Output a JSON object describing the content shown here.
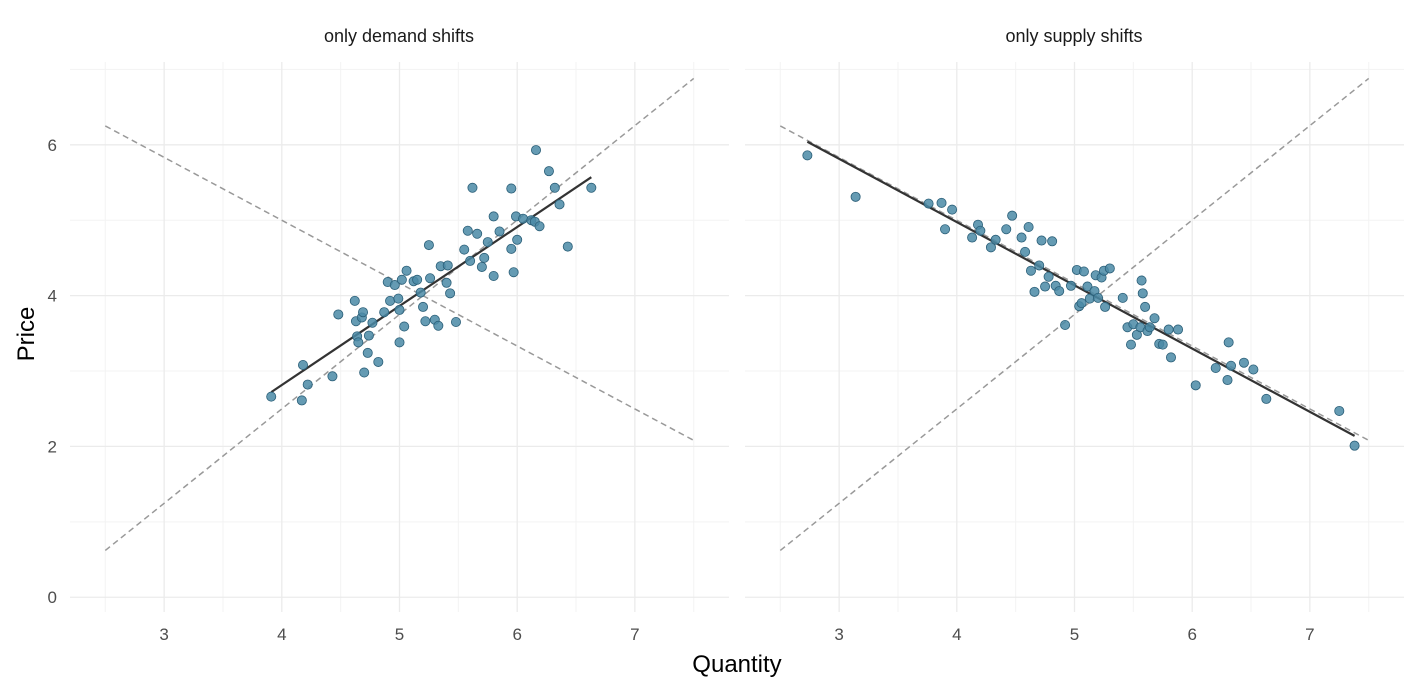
{
  "chart_data": {
    "type": "scatter",
    "xlabel": "Quantity",
    "ylabel": "Price",
    "xlim": [
      2.5,
      7.5
    ],
    "ylim": [
      0,
      7
    ],
    "x_ticks": [
      3,
      4,
      5,
      6,
      7
    ],
    "y_ticks": [
      0,
      2,
      4,
      6
    ],
    "grid": true,
    "colors": {
      "points": "#4a8aa6",
      "point_outline": "#2b5f78",
      "fit_line": "#333333",
      "reference_lines": "#999999",
      "grid": "#ebebeb"
    },
    "panels": [
      {
        "title": "only demand shifts",
        "reference_lines": [
          {
            "x": [
              2.5,
              7.5
            ],
            "y": [
              6.25,
              2.08
            ]
          },
          {
            "x": [
              2.5,
              7.5
            ],
            "y": [
              0.62,
              6.88
            ]
          }
        ],
        "fit_line": {
          "x": [
            3.91,
            6.63
          ],
          "y": [
            2.72,
            5.57
          ]
        },
        "points": {
          "x": [
            3.91,
            4.17,
            4.18,
            4.22,
            4.43,
            4.48,
            4.62,
            4.63,
            4.64,
            4.65,
            4.68,
            4.69,
            4.7,
            4.73,
            4.74,
            4.77,
            4.82,
            4.87,
            4.9,
            4.92,
            4.96,
            4.99,
            5.0,
            5.0,
            5.02,
            5.04,
            5.06,
            5.12,
            5.15,
            5.18,
            5.2,
            5.22,
            5.25,
            5.26,
            5.3,
            5.33,
            5.35,
            5.4,
            5.41,
            5.43,
            5.48,
            5.55,
            5.58,
            5.6,
            5.62,
            5.66,
            5.7,
            5.72,
            5.75,
            5.8,
            5.8,
            5.85,
            5.95,
            5.95,
            5.97,
            5.99,
            6.0,
            6.05,
            6.12,
            6.15,
            6.16,
            6.19,
            6.27,
            6.32,
            6.36,
            6.43,
            6.63
          ],
          "y": [
            2.66,
            2.61,
            3.08,
            2.82,
            2.93,
            3.75,
            3.93,
            3.66,
            3.46,
            3.38,
            3.71,
            3.78,
            2.98,
            3.24,
            3.47,
            3.64,
            3.12,
            3.78,
            4.18,
            3.93,
            4.14,
            3.96,
            3.81,
            3.38,
            4.21,
            3.59,
            4.33,
            4.19,
            4.21,
            4.04,
            3.85,
            3.66,
            4.67,
            4.23,
            3.68,
            3.6,
            4.39,
            4.17,
            4.4,
            4.03,
            3.65,
            4.61,
            4.86,
            4.46,
            5.43,
            4.82,
            4.38,
            4.5,
            4.71,
            4.26,
            5.05,
            4.85,
            5.42,
            4.62,
            4.31,
            5.05,
            4.74,
            5.02,
            5.0,
            4.98,
            5.93,
            4.92,
            5.65,
            5.43,
            5.21,
            4.65,
            5.43
          ]
        }
      },
      {
        "title": "only supply shifts",
        "reference_lines": [
          {
            "x": [
              2.5,
              7.5
            ],
            "y": [
              6.25,
              2.08
            ]
          },
          {
            "x": [
              2.5,
              7.5
            ],
            "y": [
              0.62,
              6.88
            ]
          }
        ],
        "fit_line": {
          "x": [
            2.73,
            7.38
          ],
          "y": [
            6.04,
            2.14
          ]
        },
        "points": {
          "x": [
            2.73,
            3.14,
            3.76,
            3.87,
            3.9,
            3.96,
            4.13,
            4.18,
            4.2,
            4.29,
            4.33,
            4.42,
            4.47,
            4.55,
            4.58,
            4.61,
            4.63,
            4.66,
            4.7,
            4.72,
            4.75,
            4.78,
            4.81,
            4.84,
            4.87,
            4.92,
            4.97,
            5.02,
            5.04,
            5.06,
            5.08,
            5.11,
            5.13,
            5.17,
            5.18,
            5.2,
            5.23,
            5.25,
            5.26,
            5.3,
            5.41,
            5.45,
            5.48,
            5.5,
            5.53,
            5.56,
            5.57,
            5.58,
            5.6,
            5.62,
            5.64,
            5.68,
            5.72,
            5.75,
            5.8,
            5.82,
            5.88,
            6.03,
            6.2,
            6.3,
            6.31,
            6.33,
            6.44,
            6.52,
            6.63,
            7.25,
            7.38
          ],
          "y": [
            5.86,
            5.31,
            5.22,
            5.23,
            4.88,
            5.14,
            4.77,
            4.94,
            4.86,
            4.64,
            4.74,
            4.88,
            5.06,
            4.77,
            4.58,
            4.91,
            4.33,
            4.05,
            4.4,
            4.73,
            4.12,
            4.25,
            4.72,
            4.13,
            4.06,
            3.61,
            4.13,
            4.34,
            3.86,
            3.9,
            4.32,
            4.12,
            3.96,
            4.06,
            4.27,
            3.97,
            4.24,
            4.33,
            3.85,
            4.36,
            3.97,
            3.58,
            3.35,
            3.62,
            3.48,
            3.58,
            4.2,
            4.03,
            3.85,
            3.53,
            3.58,
            3.7,
            3.36,
            3.35,
            3.55,
            3.18,
            3.55,
            2.81,
            3.04,
            2.88,
            3.38,
            3.07,
            3.11,
            3.02,
            2.63,
            2.47,
            2.01
          ]
        }
      }
    ]
  }
}
